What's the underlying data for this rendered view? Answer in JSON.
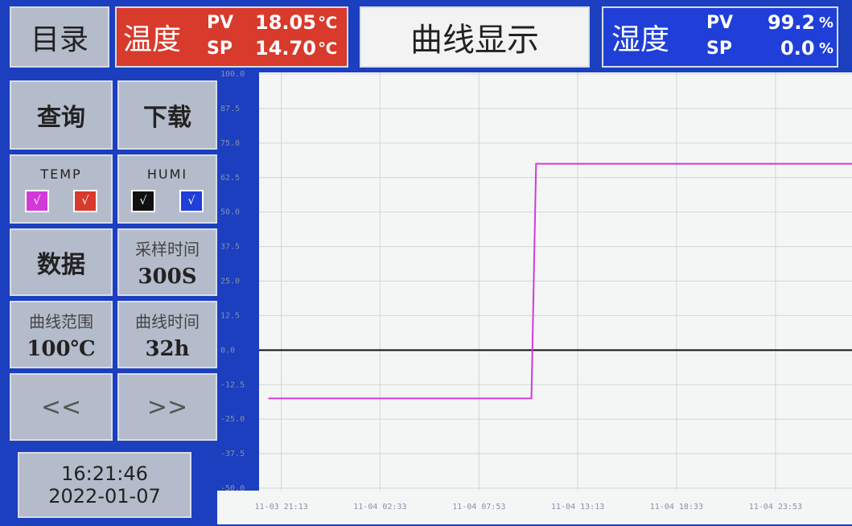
{
  "header": {
    "menu": "目录",
    "temp": {
      "label": "温度",
      "pv_label": "PV",
      "pv": "18.05",
      "pv_unit": "℃",
      "sp_label": "SP",
      "sp": "14.70",
      "sp_unit": "℃"
    },
    "title": "曲线显示",
    "humi": {
      "label": "湿度",
      "pv_label": "PV",
      "pv": "99.2",
      "pv_unit": "%",
      "sp_label": "SP",
      "sp": "0.0",
      "sp_unit": "%"
    }
  },
  "sidebar": {
    "query": "查询",
    "download": "下载",
    "temp": "TEMP",
    "humi": "HUMI",
    "check": "√",
    "data": "数据",
    "sample_label": "采样时间",
    "sample": "300S",
    "range_label": "曲线范围",
    "range": "100℃",
    "time_label": "曲线时间",
    "time": "32h",
    "prev": "<<",
    "next": ">>",
    "clock_time": "16:21:46",
    "clock_date": "2022-01-07"
  },
  "chart_data": {
    "type": "line",
    "xlim": [
      -1.2,
      30.8
    ],
    "xticks": [
      {
        "value": 0,
        "label": "11-03 21:13"
      },
      {
        "value": 5.33,
        "label": "11-04 02:33"
      },
      {
        "value": 10.67,
        "label": "11-04 07:53"
      },
      {
        "value": 16,
        "label": "11-04 13:13"
      },
      {
        "value": 21.33,
        "label": "11-04 18:33"
      },
      {
        "value": 26.67,
        "label": "11-04 23:53"
      }
    ],
    "ylim": [
      -50,
      100
    ],
    "yticks": [
      {
        "value": 100,
        "label": "100.0"
      },
      87.5,
      {
        "value": 75,
        "label": "75.0"
      },
      62.5,
      {
        "value": 50,
        "label": "50.0"
      },
      37.5,
      {
        "value": 25,
        "label": "25.0"
      },
      12.5,
      {
        "value": 0,
        "label": "0.0"
      },
      -12.5,
      {
        "value": -25,
        "label": "-25.0"
      },
      -37.5,
      {
        "value": -50,
        "label": "-50.0"
      }
    ],
    "grid": true,
    "series": [
      {
        "color": "#111111",
        "x": [
          -1.2,
          30.8
        ],
        "values": [
          0,
          0
        ]
      },
      {
        "color": "#d23ad8",
        "x": [
          -0.7,
          13.5,
          13.75,
          30.8
        ],
        "values": [
          -17.5,
          -17.5,
          67.5,
          67.5
        ]
      }
    ]
  }
}
